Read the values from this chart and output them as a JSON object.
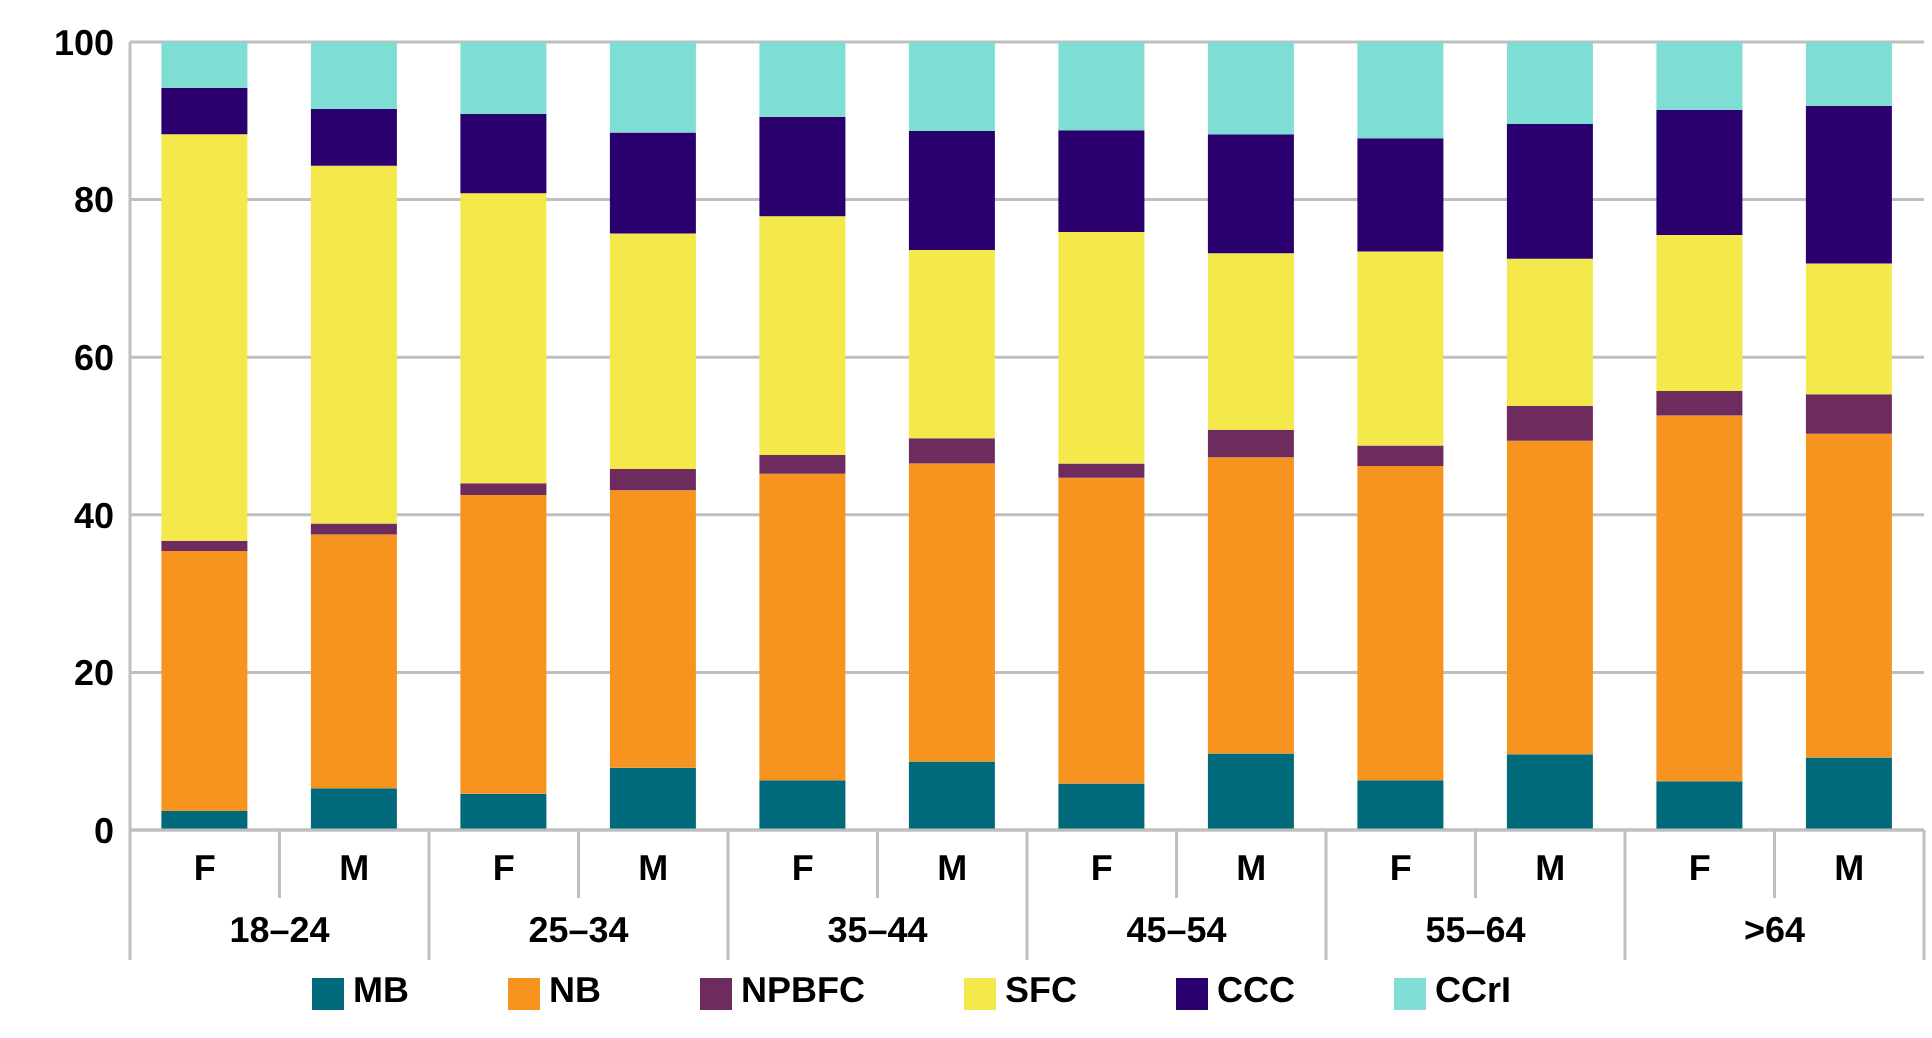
{
  "chart_data": {
    "type": "bar",
    "stacked": true,
    "categories": [
      "F",
      "M",
      "F",
      "M",
      "F",
      "M",
      "F",
      "M",
      "F",
      "M",
      "F",
      "M"
    ],
    "annotations": [
      "18–24",
      "25–34",
      "35–44",
      "45–54",
      "55–64",
      ">64"
    ],
    "series": [
      {
        "name": "MB",
        "color": "#006a7a",
        "values": [
          2.4,
          5.3,
          4.6,
          7.9,
          6.3,
          8.7,
          5.9,
          9.7,
          6.3,
          9.6,
          6.2,
          9.2
        ]
      },
      {
        "name": "NB",
        "color": "#f7941f",
        "values": [
          33.0,
          32.2,
          37.9,
          35.2,
          38.9,
          37.8,
          38.8,
          37.6,
          39.9,
          39.8,
          46.4,
          41.1
        ]
      },
      {
        "name": "NPBFC",
        "color": "#6e2c5e",
        "values": [
          1.3,
          1.4,
          1.5,
          2.7,
          2.4,
          3.2,
          1.8,
          3.5,
          2.6,
          4.4,
          3.1,
          5.0
        ]
      },
      {
        "name": "SFC",
        "color": "#f5e84a",
        "values": [
          51.6,
          45.4,
          36.8,
          29.9,
          30.3,
          23.9,
          29.4,
          22.4,
          24.6,
          18.7,
          19.8,
          16.6
        ]
      },
      {
        "name": "CCC",
        "color": "#2a006e",
        "values": [
          5.9,
          7.2,
          10.1,
          12.8,
          12.6,
          15.1,
          12.9,
          15.1,
          14.4,
          17.1,
          15.9,
          20.0
        ]
      },
      {
        "name": "CCrI",
        "color": "#7fded4",
        "values": [
          5.8,
          8.5,
          9.1,
          11.5,
          9.5,
          11.3,
          11.2,
          11.7,
          12.2,
          10.4,
          8.6,
          8.1
        ]
      }
    ],
    "ylim": [
      0,
      100
    ],
    "yticks": [
      0,
      20,
      40,
      60,
      80,
      100
    ],
    "grid": "y",
    "legend": "bottom"
  }
}
